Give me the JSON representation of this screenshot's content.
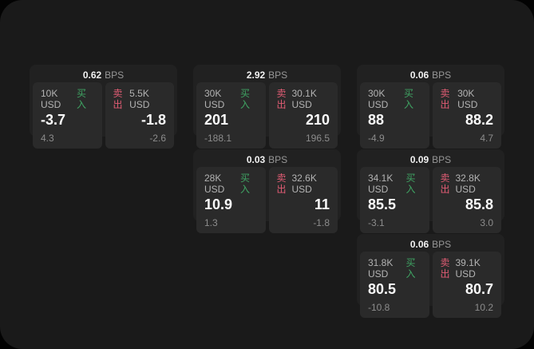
{
  "labels": {
    "bps_suffix": "BPS",
    "buy": "买入",
    "sell": "卖出"
  },
  "colors": {
    "outer_background": "#030303",
    "panel_background": "#1a1a1a",
    "card_background": "#212121",
    "tile_background": "#2a2a2a",
    "buy_green": "#3fa463",
    "sell_red": "#e15c74",
    "value_white": "#fafafa",
    "label_gray": "#b3b3b3",
    "delta_gray": "#8c8c8c"
  },
  "cards": [
    {
      "row": 1,
      "col": 1,
      "bps": "0.62",
      "buy": {
        "amount": "10K USD",
        "value": "-3.7",
        "delta": "4.3"
      },
      "sell": {
        "amount": "5.5K USD",
        "value": "-1.8",
        "delta": "-2.6"
      }
    },
    {
      "row": 1,
      "col": 2,
      "bps": "2.92",
      "buy": {
        "amount": "30K USD",
        "value": "201",
        "delta": "-188.1"
      },
      "sell": {
        "amount": "30.1K USD",
        "value": "210",
        "delta": "196.5"
      }
    },
    {
      "row": 1,
      "col": 3,
      "bps": "0.06",
      "buy": {
        "amount": "30K USD",
        "value": "88",
        "delta": "-4.9"
      },
      "sell": {
        "amount": "30K USD",
        "value": "88.2",
        "delta": "4.7"
      }
    },
    {
      "row": 2,
      "col": 2,
      "bps": "0.03",
      "buy": {
        "amount": "28K USD",
        "value": "10.9",
        "delta": "1.3"
      },
      "sell": {
        "amount": "32.6K USD",
        "value": "11",
        "delta": "-1.8"
      }
    },
    {
      "row": 2,
      "col": 3,
      "bps": "0.09",
      "buy": {
        "amount": "34.1K USD",
        "value": "85.5",
        "delta": "-3.1"
      },
      "sell": {
        "amount": "32.8K USD",
        "value": "85.8",
        "delta": "3.0"
      }
    },
    {
      "row": 3,
      "col": 3,
      "bps": "0.06",
      "buy": {
        "amount": "31.8K USD",
        "value": "80.5",
        "delta": "-10.8"
      },
      "sell": {
        "amount": "39.1K USD",
        "value": "80.7",
        "delta": "10.2"
      }
    }
  ]
}
